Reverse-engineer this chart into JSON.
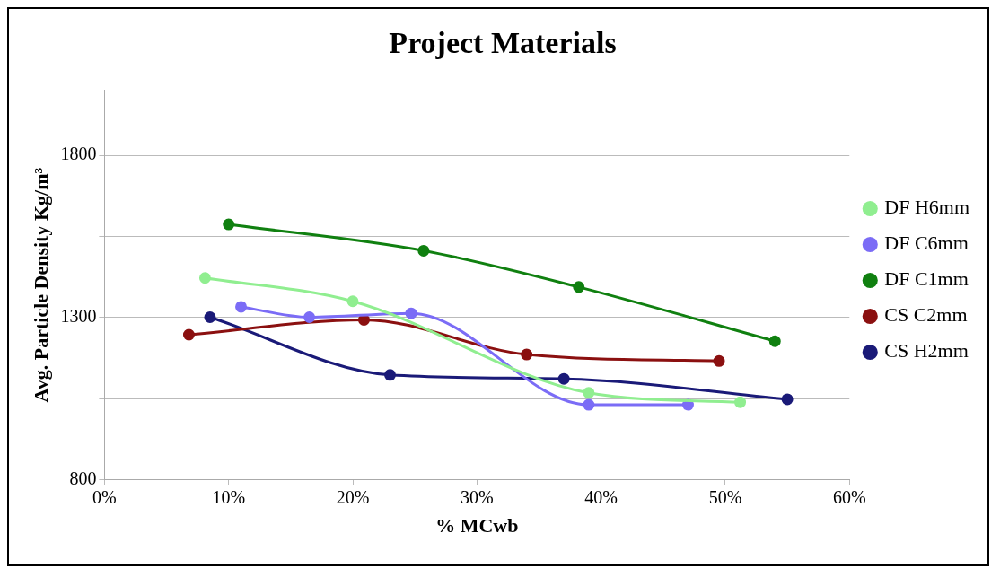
{
  "chart_data": {
    "type": "line",
    "title": "Project Materials",
    "xlabel": "% MCwb",
    "ylabel": "Avg. Particle Density Kg/m³",
    "xlim": [
      0,
      60
    ],
    "xticks": [
      {
        "value": 0,
        "label": "0%"
      },
      {
        "value": 10,
        "label": "10%"
      },
      {
        "value": 20,
        "label": "20%"
      },
      {
        "value": 30,
        "label": "30%"
      },
      {
        "value": 40,
        "label": "40%"
      },
      {
        "value": 50,
        "label": "50%"
      },
      {
        "value": 60,
        "label": "60%"
      }
    ],
    "ylim": [
      800,
      2000
    ],
    "yticks": [
      800,
      {
        "value": 1050,
        "label": null
      },
      1300,
      {
        "value": 1550,
        "label": null
      },
      1800
    ],
    "grid": "y",
    "legend": "right",
    "marker": "circle",
    "line_style": "solid",
    "series": [
      {
        "name": "DF H6mm",
        "color": "#90ee90",
        "x": [
          8.1,
          20,
          39,
          51.2
        ],
        "values": [
          1422,
          1350,
          1068,
          1039
        ]
      },
      {
        "name": "DF C6mm",
        "color": "#7b6cf6",
        "x": [
          11,
          16.5,
          24.7,
          39,
          47
        ],
        "values": [
          1333,
          1301,
          1313,
          1031,
          1031
        ]
      },
      {
        "name": "DF C1mm",
        "color": "#108010",
        "x": [
          10,
          25.7,
          38.2,
          54
        ],
        "values": [
          1587,
          1506,
          1394,
          1227
        ]
      },
      {
        "name": "CS C2mm",
        "color": "#8b1010",
        "x": [
          6.8,
          20.9,
          34,
          49.5
        ],
        "values": [
          1247,
          1293,
          1186,
          1166
        ]
      },
      {
        "name": "CS H2mm",
        "color": "#1a1a78",
        "x": [
          8.5,
          23,
          37,
          55
        ],
        "values": [
          1301,
          1123,
          1111,
          1048
        ]
      }
    ]
  }
}
